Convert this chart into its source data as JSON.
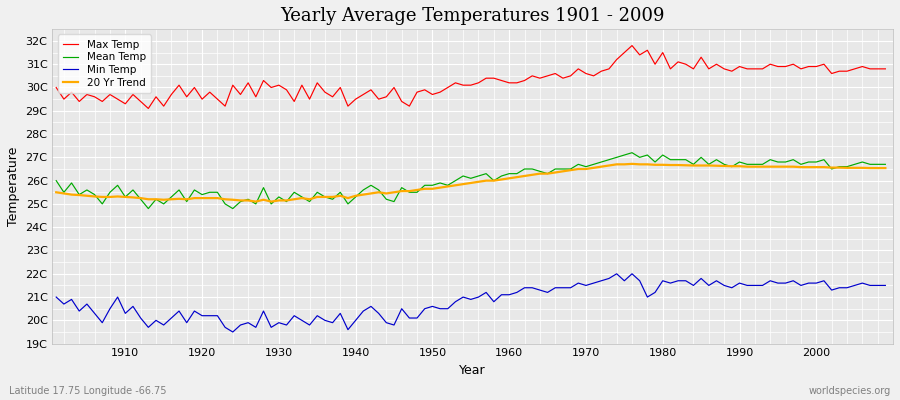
{
  "title": "Yearly Average Temperatures 1901 - 2009",
  "xlabel": "Year",
  "ylabel": "Temperature",
  "subtitle_left": "Latitude 17.75 Longitude -66.75",
  "subtitle_right": "worldspecies.org",
  "year_start": 1901,
  "year_end": 2009,
  "ylim": [
    19,
    32.5
  ],
  "yticks": [
    19,
    20,
    21,
    22,
    23,
    24,
    25,
    26,
    27,
    28,
    29,
    30,
    31,
    32
  ],
  "ytick_labels": [
    "19C",
    "20C",
    "21C",
    "22C",
    "23C",
    "24C",
    "25C",
    "26C",
    "27C",
    "28C",
    "29C",
    "30C",
    "31C",
    "32C"
  ],
  "xticks": [
    1910,
    1920,
    1930,
    1940,
    1950,
    1960,
    1970,
    1980,
    1990,
    2000
  ],
  "bg_color": "#f0f0f0",
  "plot_bg_color": "#e8e8e8",
  "grid_color": "#ffffff",
  "max_temp_color": "#ff0000",
  "mean_temp_color": "#00aa00",
  "min_temp_color": "#0000cc",
  "trend_color": "#ffaa00",
  "legend_labels": [
    "Max Temp",
    "Mean Temp",
    "Min Temp",
    "20 Yr Trend"
  ],
  "max_temp": [
    30.0,
    29.5,
    29.8,
    29.4,
    29.7,
    29.6,
    29.4,
    29.7,
    29.5,
    29.3,
    29.7,
    29.4,
    29.1,
    29.6,
    29.2,
    29.7,
    30.1,
    29.6,
    30.0,
    29.5,
    29.8,
    29.5,
    29.2,
    30.1,
    29.7,
    30.2,
    29.6,
    30.3,
    30.0,
    30.1,
    29.9,
    29.4,
    30.1,
    29.5,
    30.2,
    29.8,
    29.6,
    30.0,
    29.2,
    29.5,
    29.7,
    29.9,
    29.5,
    29.6,
    30.0,
    29.4,
    29.2,
    29.8,
    29.9,
    29.7,
    29.8,
    30.0,
    30.2,
    30.1,
    30.1,
    30.2,
    30.4,
    30.4,
    30.3,
    30.2,
    30.2,
    30.3,
    30.5,
    30.4,
    30.5,
    30.6,
    30.4,
    30.5,
    30.8,
    30.6,
    30.5,
    30.7,
    30.8,
    31.2,
    31.5,
    31.8,
    31.4,
    31.6,
    31.0,
    31.5,
    30.8,
    31.1,
    31.0,
    30.8,
    31.3,
    30.8,
    31.0,
    30.8,
    30.7,
    30.9,
    30.8,
    30.8,
    30.8,
    31.0,
    30.9,
    30.9,
    31.0,
    30.8,
    30.9,
    30.9,
    31.0,
    30.6,
    30.7,
    30.7,
    30.8,
    30.9,
    30.8,
    30.8,
    30.8
  ],
  "mean_temp": [
    26.0,
    25.5,
    25.9,
    25.4,
    25.6,
    25.4,
    25.0,
    25.5,
    25.8,
    25.3,
    25.6,
    25.2,
    24.8,
    25.2,
    25.0,
    25.3,
    25.6,
    25.1,
    25.6,
    25.4,
    25.5,
    25.5,
    25.0,
    24.8,
    25.1,
    25.2,
    25.0,
    25.7,
    25.0,
    25.3,
    25.1,
    25.5,
    25.3,
    25.1,
    25.5,
    25.3,
    25.2,
    25.5,
    25.0,
    25.3,
    25.6,
    25.8,
    25.6,
    25.2,
    25.1,
    25.7,
    25.5,
    25.5,
    25.8,
    25.8,
    25.9,
    25.8,
    26.0,
    26.2,
    26.1,
    26.2,
    26.3,
    26.0,
    26.2,
    26.3,
    26.3,
    26.5,
    26.5,
    26.4,
    26.3,
    26.5,
    26.5,
    26.5,
    26.7,
    26.6,
    26.7,
    26.8,
    26.9,
    27.0,
    27.1,
    27.2,
    27.0,
    27.1,
    26.8,
    27.1,
    26.9,
    26.9,
    26.9,
    26.7,
    27.0,
    26.7,
    26.9,
    26.7,
    26.6,
    26.8,
    26.7,
    26.7,
    26.7,
    26.9,
    26.8,
    26.8,
    26.9,
    26.7,
    26.8,
    26.8,
    26.9,
    26.5,
    26.6,
    26.6,
    26.7,
    26.8,
    26.7,
    26.7,
    26.7
  ],
  "min_temp": [
    21.0,
    20.7,
    20.9,
    20.4,
    20.7,
    20.3,
    19.9,
    20.5,
    21.0,
    20.3,
    20.6,
    20.1,
    19.7,
    20.0,
    19.8,
    20.1,
    20.4,
    19.9,
    20.4,
    20.2,
    20.2,
    20.2,
    19.7,
    19.5,
    19.8,
    19.9,
    19.7,
    20.4,
    19.7,
    19.9,
    19.8,
    20.2,
    20.0,
    19.8,
    20.2,
    20.0,
    19.9,
    20.3,
    19.6,
    20.0,
    20.4,
    20.6,
    20.3,
    19.9,
    19.8,
    20.5,
    20.1,
    20.1,
    20.5,
    20.6,
    20.5,
    20.5,
    20.8,
    21.0,
    20.9,
    21.0,
    21.2,
    20.8,
    21.1,
    21.1,
    21.2,
    21.4,
    21.4,
    21.3,
    21.2,
    21.4,
    21.4,
    21.4,
    21.6,
    21.5,
    21.6,
    21.7,
    21.8,
    22.0,
    21.7,
    22.0,
    21.7,
    21.0,
    21.2,
    21.7,
    21.6,
    21.7,
    21.7,
    21.5,
    21.8,
    21.5,
    21.7,
    21.5,
    21.4,
    21.6,
    21.5,
    21.5,
    21.5,
    21.7,
    21.6,
    21.6,
    21.7,
    21.5,
    21.6,
    21.6,
    21.7,
    21.3,
    21.4,
    21.4,
    21.5,
    21.6,
    21.5,
    21.5,
    21.5
  ],
  "trend_values": [
    25.5,
    25.45,
    25.4,
    25.38,
    25.35,
    25.32,
    25.3,
    25.3,
    25.32,
    25.3,
    25.28,
    25.25,
    25.2,
    25.2,
    25.18,
    25.2,
    25.22,
    25.2,
    25.25,
    25.25,
    25.25,
    25.25,
    25.2,
    25.18,
    25.15,
    25.15,
    25.1,
    25.18,
    25.1,
    25.15,
    25.15,
    25.2,
    25.25,
    25.2,
    25.3,
    25.3,
    25.3,
    25.35,
    25.25,
    25.35,
    25.4,
    25.45,
    25.5,
    25.45,
    25.5,
    25.55,
    25.55,
    25.6,
    25.65,
    25.65,
    25.7,
    25.75,
    25.8,
    25.85,
    25.9,
    25.95,
    26.0,
    26.0,
    26.05,
    26.1,
    26.15,
    26.2,
    26.25,
    26.3,
    26.3,
    26.35,
    26.4,
    26.45,
    26.5,
    26.5,
    26.55,
    26.6,
    26.65,
    26.7,
    26.7,
    26.72,
    26.7,
    26.7,
    26.68,
    26.68,
    26.67,
    26.67,
    26.66,
    26.65,
    26.65,
    26.65,
    26.64,
    26.63,
    26.62,
    26.62,
    26.6,
    26.6,
    26.6,
    26.6,
    26.6,
    26.6,
    26.6,
    26.58,
    26.58,
    26.58,
    26.58,
    26.56,
    26.56,
    26.55,
    26.55,
    26.55,
    26.54,
    26.54,
    26.54
  ]
}
